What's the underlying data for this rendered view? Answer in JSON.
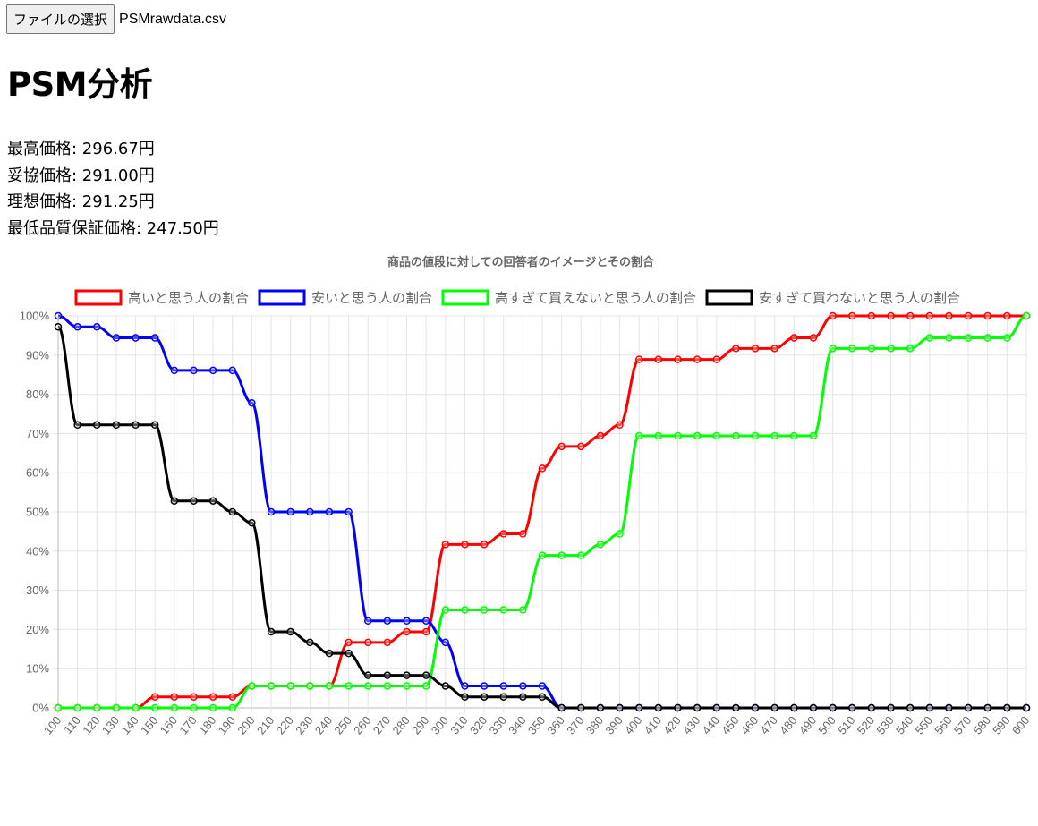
{
  "file_input": {
    "button_label": "ファイルの選択",
    "file_name": "PSMrawdata.csv"
  },
  "page_title": "PSM分析",
  "results": [
    "最高価格: 296.67円",
    "妥協価格: 291.00円",
    "理想価格: 291.25円",
    "最低品質保証価格: 247.50円"
  ],
  "chart_data": {
    "type": "line",
    "title": "商品の値段に対しての回答者のイメージとその割合",
    "legend_position": "top",
    "grid": true,
    "ylim": [
      0,
      100
    ],
    "y_tick_step": 10,
    "y_tick_suffix": "%",
    "x": [
      100,
      110,
      120,
      130,
      140,
      150,
      160,
      170,
      180,
      190,
      200,
      210,
      220,
      230,
      240,
      250,
      260,
      270,
      280,
      290,
      300,
      310,
      320,
      330,
      340,
      350,
      360,
      370,
      380,
      390,
      400,
      410,
      420,
      430,
      440,
      450,
      460,
      470,
      480,
      490,
      500,
      510,
      520,
      530,
      540,
      550,
      560,
      570,
      580,
      590,
      600
    ],
    "series": [
      {
        "name": "高いと思う人の割合",
        "color": "#ff0000",
        "values": [
          0,
          0,
          0,
          0,
          0,
          2.8,
          2.8,
          2.8,
          2.8,
          2.8,
          5.6,
          5.6,
          5.6,
          5.6,
          5.6,
          16.7,
          16.7,
          16.7,
          19.4,
          19.4,
          41.7,
          41.7,
          41.7,
          44.4,
          44.4,
          61.1,
          66.7,
          66.7,
          69.4,
          72.2,
          88.9,
          88.9,
          88.9,
          88.9,
          88.9,
          91.7,
          91.7,
          91.7,
          94.4,
          94.4,
          100,
          100,
          100,
          100,
          100,
          100,
          100,
          100,
          100,
          100,
          100
        ]
      },
      {
        "name": "安いと思う人の割合",
        "color": "#0000ff",
        "values": [
          100,
          97.2,
          97.2,
          94.4,
          94.4,
          94.4,
          86.1,
          86.1,
          86.1,
          86.1,
          77.8,
          50,
          50,
          50,
          50,
          50,
          22.2,
          22.2,
          22.2,
          22.2,
          16.7,
          5.6,
          5.6,
          5.6,
          5.6,
          5.6,
          0,
          0,
          0,
          0,
          0,
          0,
          0,
          0,
          0,
          0,
          0,
          0,
          0,
          0,
          0,
          0,
          0,
          0,
          0,
          0,
          0,
          0,
          0,
          0,
          0
        ]
      },
      {
        "name": "高すぎて買えないと思う人の割合",
        "color": "#00ff00",
        "values": [
          0,
          0,
          0,
          0,
          0,
          0,
          0,
          0,
          0,
          0,
          5.6,
          5.6,
          5.6,
          5.6,
          5.6,
          5.6,
          5.6,
          5.6,
          5.6,
          5.6,
          25,
          25,
          25,
          25,
          25,
          38.9,
          38.9,
          38.9,
          41.7,
          44.4,
          69.4,
          69.4,
          69.4,
          69.4,
          69.4,
          69.4,
          69.4,
          69.4,
          69.4,
          69.4,
          91.7,
          91.7,
          91.7,
          91.7,
          91.7,
          94.4,
          94.4,
          94.4,
          94.4,
          94.4,
          100
        ]
      },
      {
        "name": "安すぎて買わないと思う人の割合",
        "color": "#000000",
        "values": [
          97.2,
          72.2,
          72.2,
          72.2,
          72.2,
          72.2,
          52.8,
          52.8,
          52.8,
          50,
          47.2,
          19.4,
          19.4,
          16.7,
          13.9,
          13.9,
          8.3,
          8.3,
          8.3,
          8.3,
          5.6,
          2.8,
          2.8,
          2.8,
          2.8,
          2.8,
          0,
          0,
          0,
          0,
          0,
          0,
          0,
          0,
          0,
          0,
          0,
          0,
          0,
          0,
          0,
          0,
          0,
          0,
          0,
          0,
          0,
          0,
          0,
          0,
          0
        ]
      }
    ]
  }
}
